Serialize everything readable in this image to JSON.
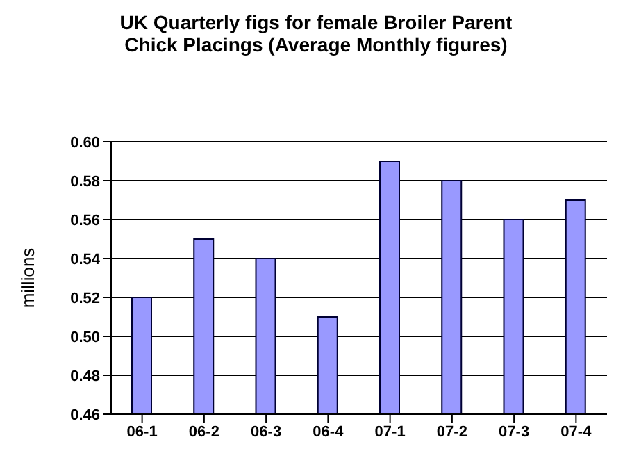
{
  "chart_data": {
    "type": "bar",
    "title": "UK Quarterly figs for female Broiler Parent Chick Placings (Average Monthly figures)",
    "ylabel": "millions",
    "categories": [
      "06-1",
      "06-2",
      "06-3",
      "06-4",
      "07-1",
      "07-2",
      "07-3",
      "07-4"
    ],
    "values": [
      0.52,
      0.55,
      0.54,
      0.51,
      0.59,
      0.58,
      0.56,
      0.57
    ],
    "color": "#9999ff",
    "ylim": [
      0.46,
      0.6
    ],
    "yticks": [
      0.46,
      0.48,
      {
        "value": 0.5,
        "label": "0.50"
      },
      0.52,
      0.54,
      0.56,
      0.58,
      {
        "value": 0.6,
        "label": "0.60"
      }
    ],
    "grid": "y"
  }
}
